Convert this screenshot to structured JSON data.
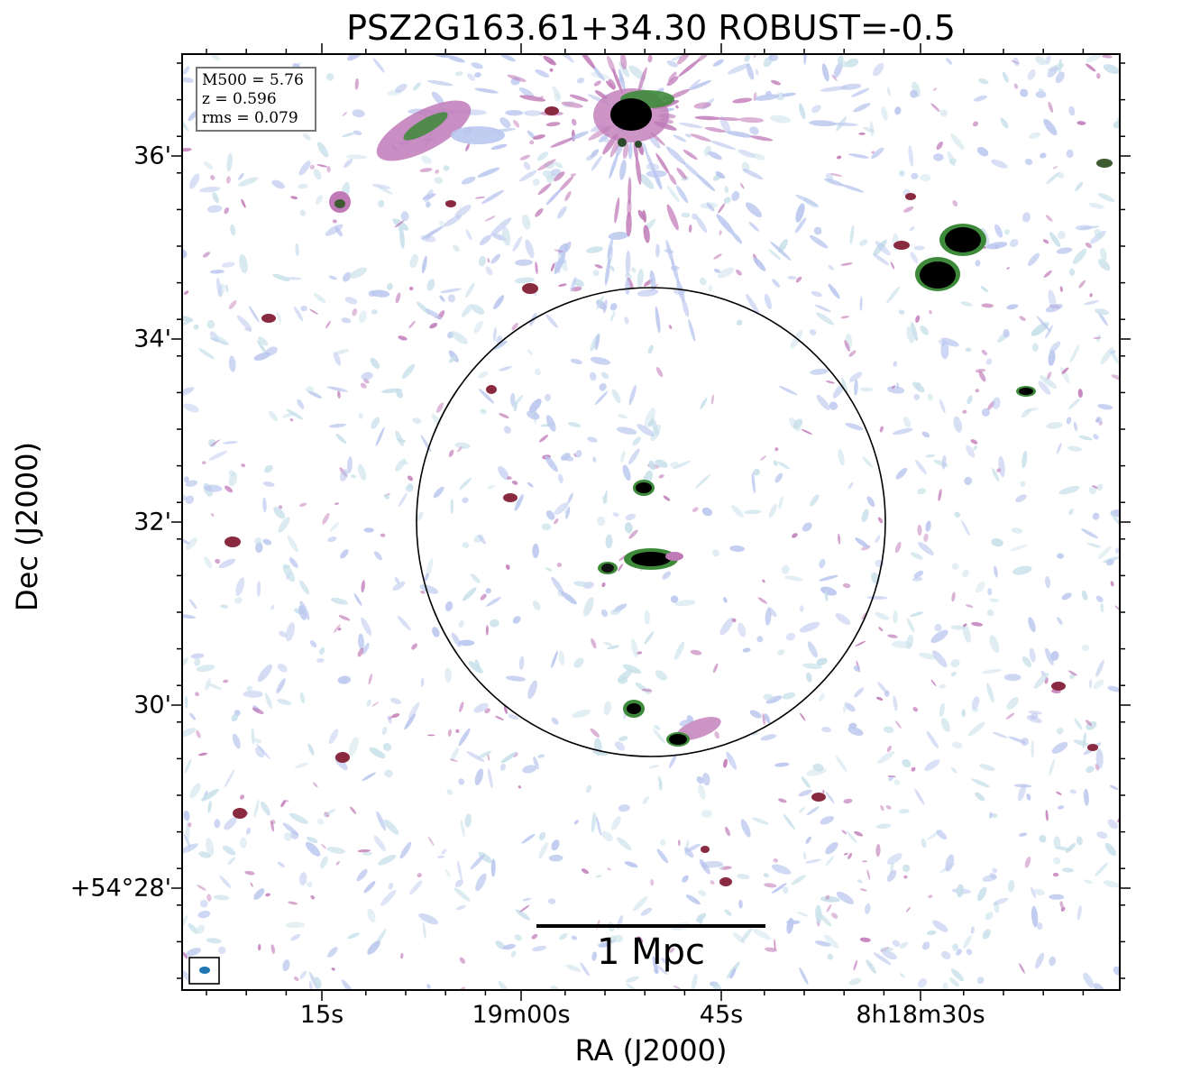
{
  "title": "PSZ2G163.61+34.30 ROBUST=-0.5",
  "axes": {
    "xlabel": "RA (J2000)",
    "ylabel": "Dec (J2000)",
    "x_ticks": [
      "15s",
      "19m00s",
      "45s",
      "8h18m30s"
    ],
    "y_ticks": [
      "36'",
      "34'",
      "32'",
      "30'",
      "+54°28'"
    ]
  },
  "info": {
    "m500": "M500 = 5.76",
    "z": "z = 0.596",
    "rms": "rms = 0.079"
  },
  "scalebar": {
    "label": "1 Mpc"
  },
  "colors": {
    "faint_emission": "#b9c6ee",
    "pale_emission": "#c8e0ea",
    "mid_emission": "#c07ab8",
    "bright_emission": "#3d8a3a",
    "core": "#000000",
    "beam": "#1f77b4"
  }
}
